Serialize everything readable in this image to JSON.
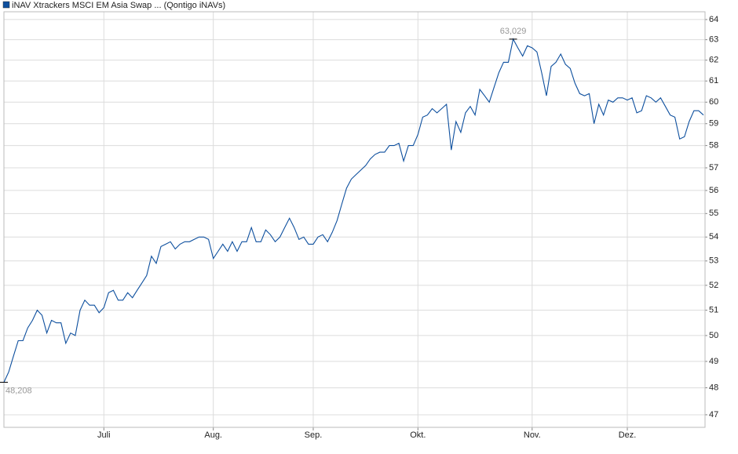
{
  "chart_data": {
    "type": "line",
    "series": [
      {
        "name": "iNAV Xtrackers MSCI EM Asia Swap ... (Qontigo iNAVs)",
        "color": "#0d4f9e",
        "values": [
          48.208,
          48.6,
          49.2,
          49.8,
          49.8,
          50.3,
          50.6,
          51.0,
          50.8,
          50.1,
          50.6,
          50.5,
          50.5,
          49.7,
          50.1,
          50.0,
          51.0,
          51.4,
          51.2,
          51.2,
          50.9,
          51.1,
          51.7,
          51.8,
          51.4,
          51.4,
          51.7,
          51.5,
          51.8,
          52.1,
          52.4,
          53.2,
          52.9,
          53.6,
          53.7,
          53.8,
          53.5,
          53.7,
          53.8,
          53.8,
          53.9,
          54.0,
          54.0,
          53.9,
          53.1,
          53.4,
          53.7,
          53.4,
          53.8,
          53.4,
          53.8,
          53.8,
          54.4,
          53.8,
          53.8,
          54.3,
          54.1,
          53.8,
          54.0,
          54.4,
          54.8,
          54.4,
          53.9,
          54.0,
          53.7,
          53.7,
          54.0,
          54.1,
          53.8,
          54.2,
          54.7,
          55.4,
          56.1,
          56.5,
          56.7,
          56.9,
          57.1,
          57.4,
          57.6,
          57.7,
          57.7,
          58.0,
          58.0,
          58.1,
          57.3,
          58.0,
          58.0,
          58.5,
          59.3,
          59.4,
          59.7,
          59.5,
          59.7,
          59.9,
          57.8,
          59.1,
          58.6,
          59.5,
          59.8,
          59.4,
          60.6,
          60.3,
          60.0,
          60.7,
          61.4,
          61.9,
          61.9,
          63.029,
          62.6,
          62.2,
          62.7,
          62.6,
          62.4,
          61.4,
          60.3,
          61.7,
          61.9,
          62.3,
          61.8,
          61.6,
          60.9,
          60.4,
          60.3,
          60.4,
          59.0,
          59.9,
          59.4,
          60.1,
          60.0,
          60.2,
          60.2,
          60.1,
          60.2,
          59.5,
          59.6,
          60.3,
          60.2,
          60.0,
          60.2,
          59.8,
          59.4,
          59.3,
          58.3,
          58.4,
          59.1,
          59.6,
          59.6,
          59.4
        ],
        "value_labels": [
          "48,208",
          null,
          null,
          null,
          null,
          null,
          null,
          null,
          null,
          null,
          null,
          null,
          null,
          null,
          null,
          null,
          null,
          null,
          null,
          null,
          null,
          null,
          null,
          null,
          null,
          null,
          null,
          null,
          null,
          null,
          null,
          null,
          null,
          null,
          null,
          null,
          null,
          null,
          null,
          null,
          null,
          null,
          null,
          null,
          null,
          null,
          null,
          null,
          null,
          null,
          null,
          null,
          null,
          null,
          null,
          null,
          null,
          null,
          null,
          null,
          null,
          null,
          null,
          null,
          null,
          null,
          null,
          null,
          null,
          null,
          null,
          null,
          null,
          null,
          null,
          null,
          null,
          null,
          null,
          null,
          null,
          null,
          null,
          null,
          null,
          null,
          null,
          null,
          null,
          null,
          null,
          null,
          null,
          null,
          null,
          null,
          null,
          null,
          null,
          null,
          null,
          null,
          null,
          null,
          null,
          null,
          null,
          "63,029",
          null,
          null,
          null,
          null,
          null,
          null,
          null,
          null,
          null,
          null,
          null,
          null,
          null,
          null,
          null,
          null,
          null,
          null,
          null,
          null,
          null,
          null,
          null,
          null,
          null,
          null,
          null,
          null,
          null,
          null,
          null,
          null,
          null,
          null,
          null,
          null,
          null,
          null,
          null,
          null
        ]
      }
    ],
    "categories": [
      null,
      null,
      null,
      null,
      null,
      null,
      null,
      null,
      null,
      null,
      null,
      null,
      null,
      null,
      null,
      null,
      null,
      null,
      null,
      null,
      null,
      "Juli",
      null,
      null,
      null,
      null,
      null,
      null,
      null,
      null,
      null,
      null,
      null,
      null,
      null,
      null,
      null,
      null,
      null,
      null,
      null,
      null,
      null,
      null,
      "Aug.",
      null,
      null,
      null,
      null,
      null,
      null,
      null,
      null,
      null,
      null,
      null,
      null,
      null,
      null,
      null,
      null,
      null,
      null,
      null,
      null,
      "Sep.",
      null,
      null,
      null,
      null,
      null,
      null,
      null,
      null,
      null,
      null,
      null,
      null,
      null,
      null,
      null,
      null,
      null,
      null,
      null,
      null,
      null,
      "Okt.",
      null,
      null,
      null,
      null,
      null,
      null,
      null,
      null,
      null,
      null,
      null,
      null,
      null,
      null,
      null,
      null,
      null,
      null,
      null,
      null,
      null,
      null,
      null,
      "Nov.",
      null,
      null,
      null,
      null,
      null,
      null,
      null,
      null,
      null,
      null,
      null,
      null,
      null,
      null,
      null,
      null,
      null,
      null,
      null,
      "Dez.",
      null,
      null,
      null,
      null,
      null,
      null,
      null,
      null,
      null,
      null,
      null,
      null,
      null,
      null,
      null,
      null
    ],
    "ylim": [
      46.54,
      64.39
    ],
    "yticks": [
      47,
      48,
      49,
      50,
      51,
      52,
      53,
      54,
      55,
      56,
      57,
      58,
      59,
      60,
      61,
      62,
      63,
      64
    ],
    "log_scale": true,
    "grid": true
  }
}
